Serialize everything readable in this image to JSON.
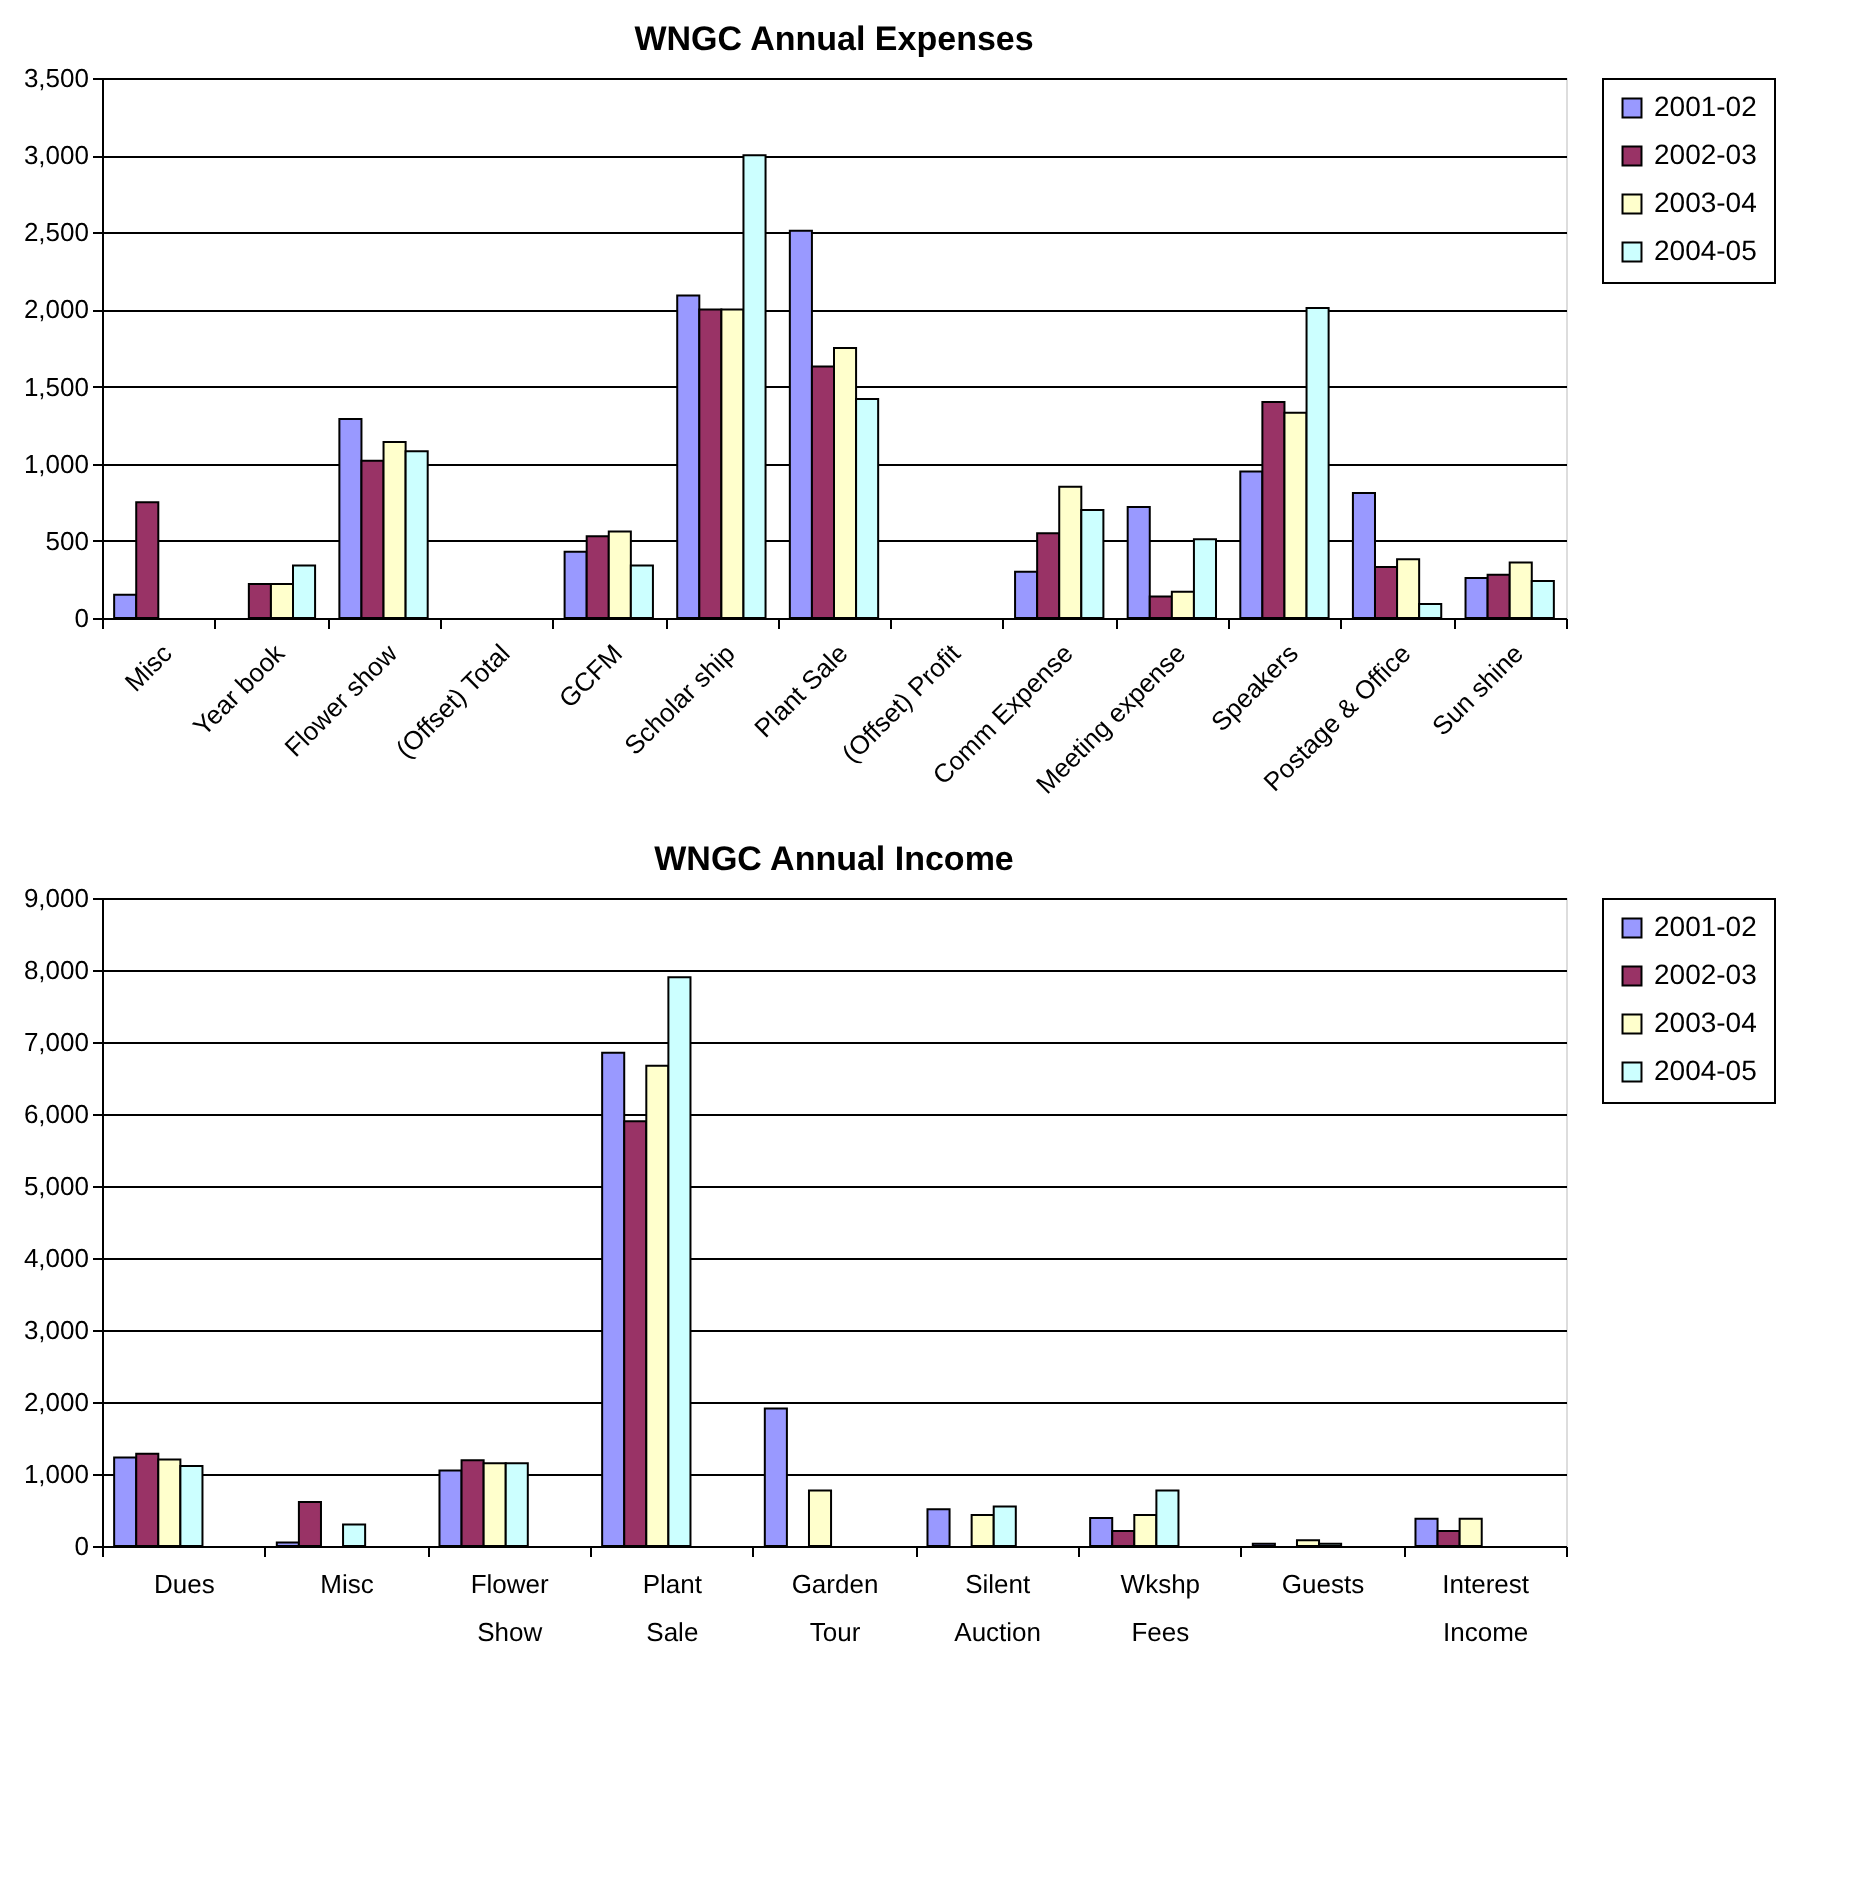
{
  "chart_data": [
    {
      "type": "bar",
      "title": "WNGC Annual Expenses",
      "categories": [
        "Misc",
        "Year book",
        "Flower show",
        "(Offset)  Total",
        "GCFM",
        "Scholar ship",
        "Plant Sale",
        "(Offset)  Profit",
        "Comm Expense",
        "Meeting expense",
        "Speakers",
        "Postage & Office",
        "Sun shine"
      ],
      "series": [
        {
          "name": "2001-02",
          "color": "#9999ff",
          "values": [
            150,
            null,
            1290,
            null,
            430,
            2090,
            2510,
            null,
            300,
            720,
            950,
            810,
            260
          ]
        },
        {
          "name": "2002-03",
          "color": "#993366",
          "values": [
            750,
            220,
            1020,
            null,
            530,
            2000,
            1630,
            null,
            550,
            140,
            1400,
            330,
            280
          ]
        },
        {
          "name": "2003-04",
          "color": "#ffffcc",
          "values": [
            null,
            220,
            1140,
            null,
            560,
            2000,
            1750,
            null,
            850,
            170,
            1330,
            380,
            360
          ]
        },
        {
          "name": "2004-05",
          "color": "#ccffff",
          "values": [
            null,
            340,
            1080,
            null,
            340,
            3000,
            1420,
            null,
            700,
            510,
            2010,
            90,
            240
          ]
        }
      ],
      "ylim": [
        0,
        3500
      ],
      "yticks": [
        {
          "value": 0,
          "label": "0"
        },
        {
          "value": 500,
          "label": "500"
        },
        {
          "value": 1000,
          "label": "1,000"
        },
        {
          "value": 1500,
          "label": "1,500"
        },
        {
          "value": 2000,
          "label": "2,000"
        },
        {
          "value": 2500,
          "label": "2,500"
        },
        {
          "value": 3000,
          "label": "3,000"
        },
        {
          "value": 3500,
          "label": "3,500"
        }
      ],
      "grid": "y",
      "legend": "right"
    },
    {
      "type": "bar",
      "title": "WNGC Annual Income",
      "categories": [
        "Dues",
        "Misc",
        "Flower Show",
        "Plant Sale",
        "Garden Tour",
        "Silent Auction",
        "Wkshp Fees",
        "Guests",
        "Interest Income"
      ],
      "series": [
        {
          "name": "2001-02",
          "color": "#9999ff",
          "values": [
            1230,
            50,
            1050,
            6850,
            1910,
            510,
            390,
            30,
            380
          ]
        },
        {
          "name": "2002-03",
          "color": "#993366",
          "values": [
            1280,
            610,
            1190,
            5900,
            null,
            null,
            210,
            null,
            210
          ]
        },
        {
          "name": "2003-04",
          "color": "#ffffcc",
          "values": [
            1200,
            null,
            1150,
            6670,
            770,
            430,
            430,
            80,
            380
          ]
        },
        {
          "name": "2004-05",
          "color": "#ccffff",
          "values": [
            1110,
            300,
            1150,
            7900,
            null,
            550,
            770,
            30,
            null
          ]
        }
      ],
      "ylim": [
        0,
        9000
      ],
      "yticks": [
        {
          "value": 0,
          "label": "0"
        },
        {
          "value": 1000,
          "label": "1,000"
        },
        {
          "value": 2000,
          "label": "2,000"
        },
        {
          "value": 3000,
          "label": "3,000"
        },
        {
          "value": 4000,
          "label": "4,000"
        },
        {
          "value": 5000,
          "label": "5,000"
        },
        {
          "value": 6000,
          "label": "6,000"
        },
        {
          "value": 7000,
          "label": "7,000"
        },
        {
          "value": 8000,
          "label": "8,000"
        },
        {
          "value": 9000,
          "label": "9,000"
        }
      ],
      "grid": "y",
      "legend": "right"
    }
  ]
}
